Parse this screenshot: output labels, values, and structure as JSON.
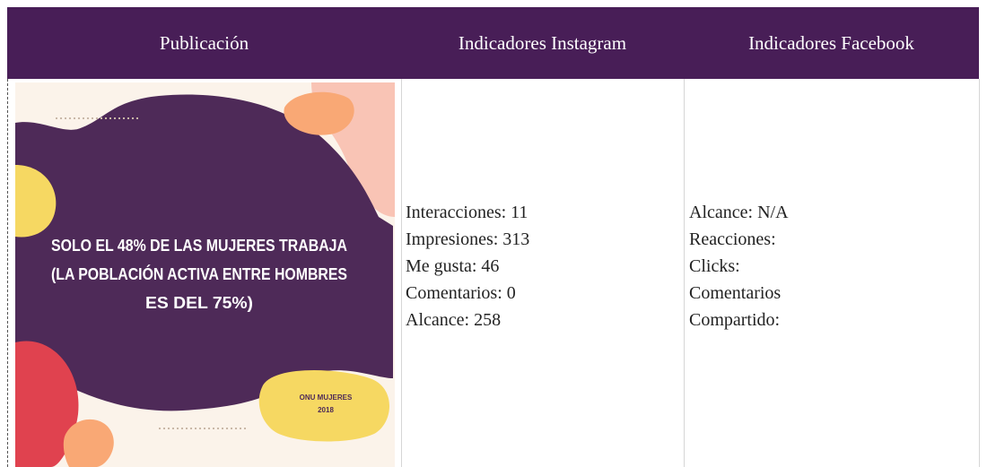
{
  "header": {
    "columns": [
      "Publicación",
      "Indicadores Instagram",
      "Indicadores Facebook"
    ]
  },
  "post": {
    "lines": [
      "SOLO EL 48% DE LAS MUJERES TRABAJA",
      "(LA POBLACIÓN ACTIVA ENTRE HOMBRES",
      "ES DEL 75%)"
    ],
    "source": [
      "ONU MUJERES",
      "2018"
    ]
  },
  "instagram": [
    "Interacciones: 11",
    "Impresiones: 313",
    "Me gusta: 46",
    "Comentarios: 0",
    "Alcance: 258"
  ],
  "facebook": [
    "Alcance: N/A",
    "Reacciones:",
    "Clicks:",
    "Comentarios",
    "Compartido:"
  ]
}
